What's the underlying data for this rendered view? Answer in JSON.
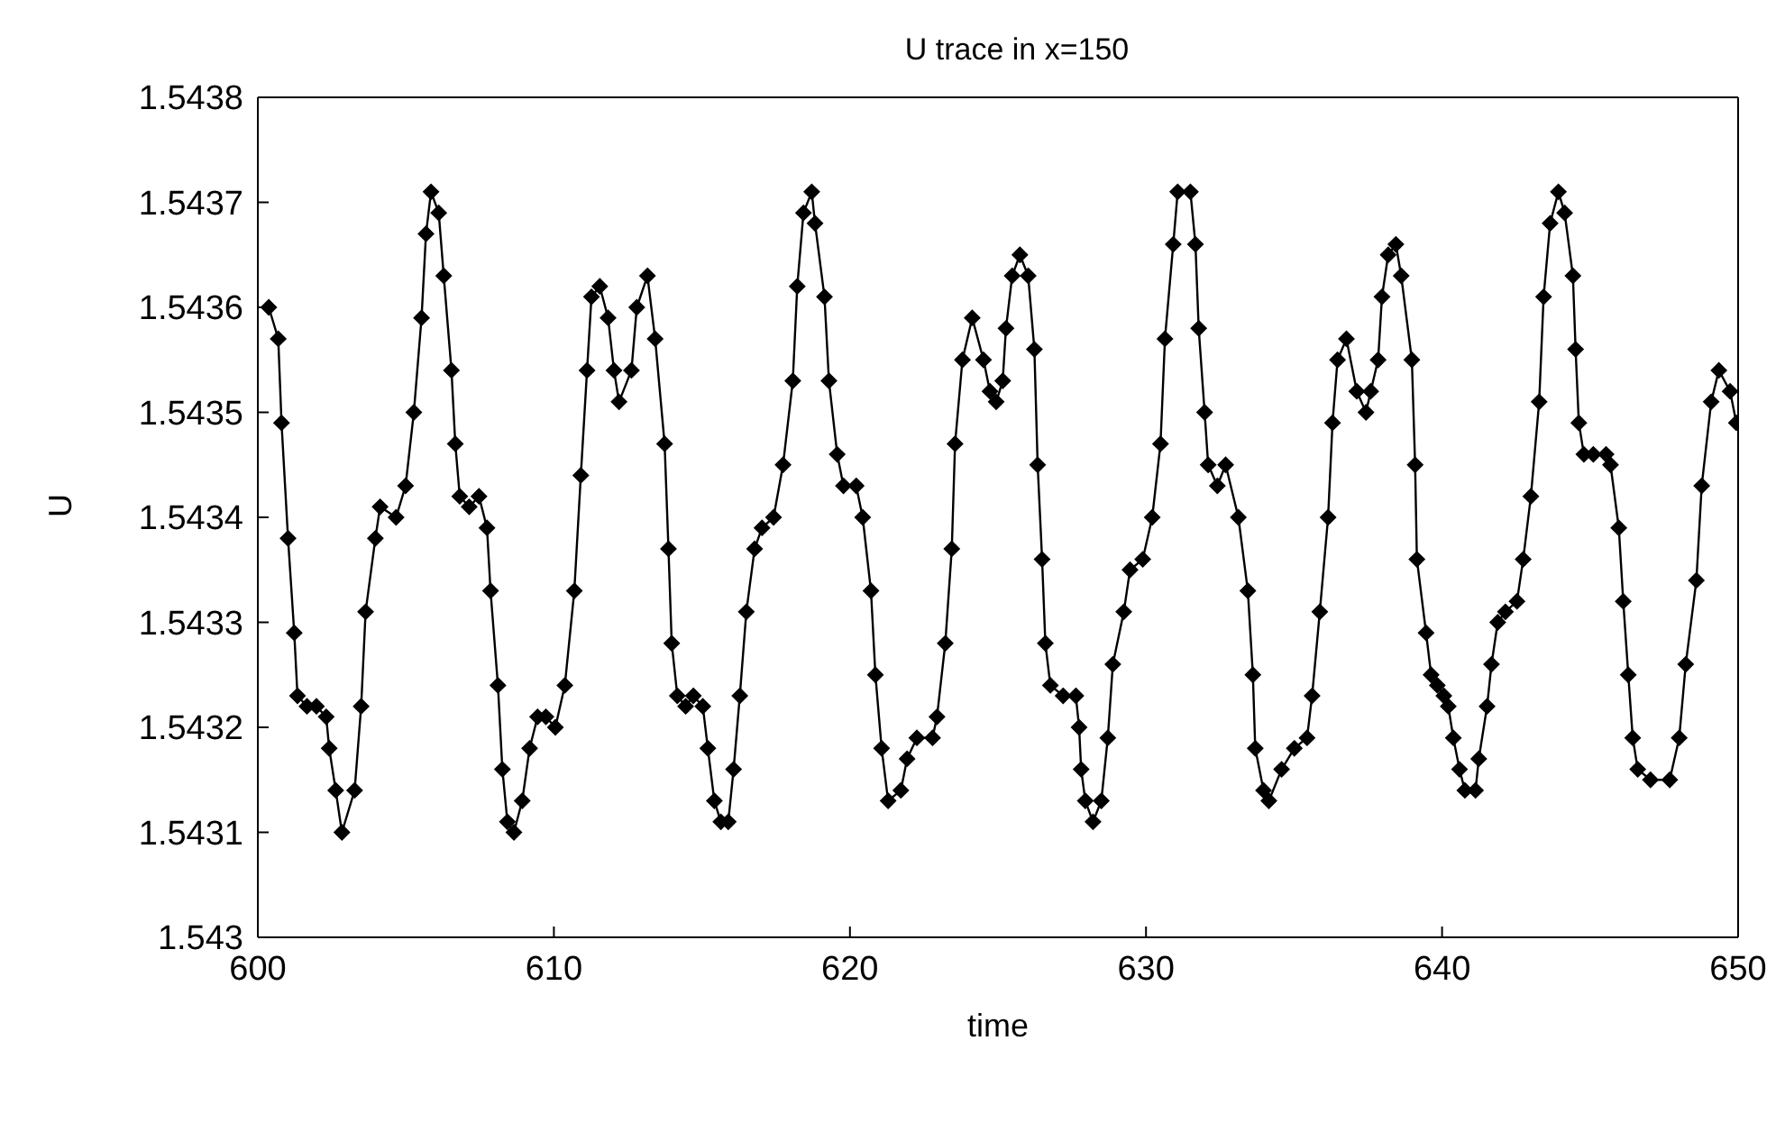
{
  "chart_data": {
    "type": "line",
    "title": "U trace in x=150",
    "xlabel": "time",
    "ylabel": "U",
    "xlim": [
      600,
      650
    ],
    "xticks": [
      600,
      610,
      620,
      630,
      640,
      650
    ],
    "ylim": [
      1.543,
      1.5438
    ],
    "yticks": [
      1.543,
      1.5431,
      1.5432,
      1.5433,
      1.5434,
      1.5435,
      1.5436,
      1.5437,
      1.5438
    ],
    "marker": "diamond",
    "line_style": "solid",
    "series": [
      {
        "color": "#000000",
        "x": [
          600.37,
          600.69,
          600.8,
          601.02,
          601.23,
          601.34,
          601.66,
          601.98,
          602.31,
          602.41,
          602.63,
          602.84,
          603.27,
          603.49,
          603.64,
          603.97,
          604.13,
          604.67,
          604.99,
          605.27,
          605.53,
          605.68,
          605.85,
          606.11,
          606.28,
          606.54,
          606.67,
          606.82,
          607.14,
          607.47,
          607.74,
          607.86,
          608.11,
          608.26,
          608.43,
          608.65,
          608.93,
          609.18,
          609.45,
          609.73,
          610.05,
          610.37,
          610.69,
          610.91,
          611.12,
          611.27,
          611.55,
          611.83,
          612.03,
          612.2,
          612.62,
          612.8,
          613.16,
          613.42,
          613.74,
          613.87,
          613.98,
          614.17,
          614.45,
          614.71,
          615.03,
          615.2,
          615.42,
          615.64,
          615.89,
          616.07,
          616.28,
          616.5,
          616.78,
          617.03,
          617.42,
          617.74,
          618.07,
          618.22,
          618.43,
          618.71,
          618.82,
          619.14,
          619.29,
          619.57,
          619.78,
          620.21,
          620.43,
          620.71,
          620.86,
          621.07,
          621.29,
          621.72,
          621.93,
          622.26,
          622.79,
          622.94,
          623.22,
          623.44,
          623.55,
          623.8,
          624.13,
          624.51,
          624.73,
          624.94,
          625.16,
          625.27,
          625.48,
          625.74,
          626.02,
          626.23,
          626.34,
          626.49,
          626.6,
          626.77,
          627.2,
          627.63,
          627.74,
          627.81,
          627.95,
          628.21,
          628.49,
          628.71,
          628.88,
          629.25,
          629.46,
          629.89,
          630.21,
          630.49,
          630.64,
          630.92,
          631.07,
          631.5,
          631.67,
          631.78,
          631.98,
          632.1,
          632.41,
          632.69,
          633.12,
          633.44,
          633.61,
          633.69,
          633.97,
          634.15,
          634.58,
          635.01,
          635.44,
          635.61,
          635.87,
          636.15,
          636.3,
          636.47,
          636.77,
          637.12,
          637.43,
          637.59,
          637.84,
          637.97,
          638.18,
          638.44,
          638.62,
          638.98,
          639.09,
          639.15,
          639.46,
          639.63,
          639.84,
          640.06,
          640.21,
          640.38,
          640.59,
          640.77,
          641.13,
          641.24,
          641.52,
          641.67,
          641.88,
          642.14,
          642.53,
          642.74,
          643.0,
          643.28,
          643.43,
          643.65,
          643.93,
          644.14,
          644.42,
          644.51,
          644.62,
          644.79,
          645.11,
          645.54,
          645.69,
          645.97,
          646.12,
          646.29,
          646.44,
          646.61,
          647.04,
          647.69,
          648.01,
          648.23,
          648.59,
          648.77,
          649.09,
          649.35,
          649.73,
          649.94
        ],
        "values": [
          1.5436,
          1.54357,
          1.54349,
          1.54338,
          1.54329,
          1.54323,
          1.54322,
          1.54322,
          1.54321,
          1.54318,
          1.54314,
          1.5431,
          1.54314,
          1.54322,
          1.54331,
          1.54338,
          1.54341,
          1.5434,
          1.54343,
          1.5435,
          1.54359,
          1.54367,
          1.54371,
          1.54369,
          1.54363,
          1.54354,
          1.54347,
          1.54342,
          1.54341,
          1.54342,
          1.54339,
          1.54333,
          1.54324,
          1.54316,
          1.54311,
          1.5431,
          1.54313,
          1.54318,
          1.54321,
          1.54321,
          1.5432,
          1.54324,
          1.54333,
          1.54344,
          1.54354,
          1.54361,
          1.54362,
          1.54359,
          1.54354,
          1.54351,
          1.54354,
          1.5436,
          1.54363,
          1.54357,
          1.54347,
          1.54337,
          1.54328,
          1.54323,
          1.54322,
          1.54323,
          1.54322,
          1.54318,
          1.54313,
          1.54311,
          1.54311,
          1.54316,
          1.54323,
          1.54331,
          1.54337,
          1.54339,
          1.5434,
          1.54345,
          1.54353,
          1.54362,
          1.54369,
          1.54371,
          1.54368,
          1.54361,
          1.54353,
          1.54346,
          1.54343,
          1.54343,
          1.5434,
          1.54333,
          1.54325,
          1.54318,
          1.54313,
          1.54314,
          1.54317,
          1.54319,
          1.54319,
          1.54321,
          1.54328,
          1.54337,
          1.54347,
          1.54355,
          1.54359,
          1.54355,
          1.54352,
          1.54351,
          1.54353,
          1.54358,
          1.54363,
          1.54365,
          1.54363,
          1.54356,
          1.54345,
          1.54336,
          1.54328,
          1.54324,
          1.54323,
          1.54323,
          1.5432,
          1.54316,
          1.54313,
          1.54311,
          1.54313,
          1.54319,
          1.54326,
          1.54331,
          1.54335,
          1.54336,
          1.5434,
          1.54347,
          1.54357,
          1.54366,
          1.54371,
          1.54371,
          1.54366,
          1.54358,
          1.5435,
          1.54345,
          1.54343,
          1.54345,
          1.5434,
          1.54333,
          1.54325,
          1.54318,
          1.54314,
          1.54313,
          1.54316,
          1.54318,
          1.54319,
          1.54323,
          1.54331,
          1.5434,
          1.54349,
          1.54355,
          1.54357,
          1.54352,
          1.5435,
          1.54352,
          1.54355,
          1.54361,
          1.54365,
          1.54366,
          1.54363,
          1.54355,
          1.54345,
          1.54336,
          1.54329,
          1.54325,
          1.54324,
          1.54323,
          1.54322,
          1.54319,
          1.54316,
          1.54314,
          1.54314,
          1.54317,
          1.54322,
          1.54326,
          1.5433,
          1.54331,
          1.54332,
          1.54336,
          1.54342,
          1.54351,
          1.54361,
          1.54368,
          1.54371,
          1.54369,
          1.54363,
          1.54356,
          1.54349,
          1.54346,
          1.54346,
          1.54346,
          1.54345,
          1.54339,
          1.54332,
          1.54325,
          1.54319,
          1.54316,
          1.54315,
          1.54315,
          1.54319,
          1.54326,
          1.54334,
          1.54343,
          1.54351,
          1.54354,
          1.54352,
          1.54349
        ]
      }
    ]
  }
}
